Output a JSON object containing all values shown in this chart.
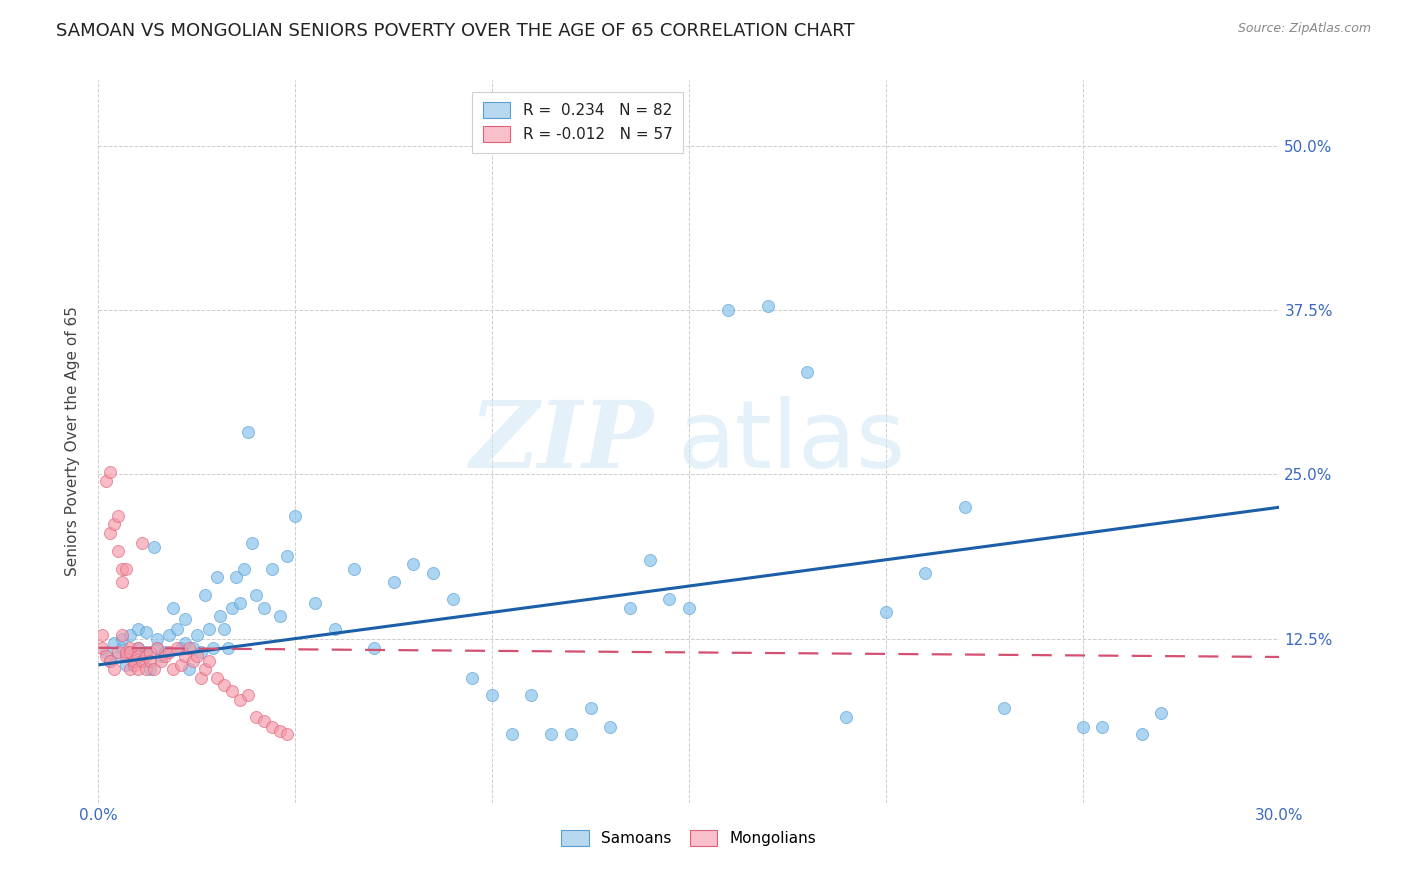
{
  "title": "SAMOAN VS MONGOLIAN SENIORS POVERTY OVER THE AGE OF 65 CORRELATION CHART",
  "source": "Source: ZipAtlas.com",
  "ylabel": "Seniors Poverty Over the Age of 65",
  "samoan_color": "#7fbfea",
  "samoan_edge": "#5a9fd4",
  "mongolian_color": "#f599a8",
  "mongolian_edge": "#e0607a",
  "samoan_line_color": "#1a5fa8",
  "mongolian_line_color": "#d45070",
  "watermark_zip": "ZIP",
  "watermark_atlas": "atlas",
  "background_color": "#ffffff",
  "plot_bg_color": "#ffffff",
  "grid_color": "#c8c8c8",
  "xlim": [
    0.0,
    0.3
  ],
  "ylim": [
    0.0,
    0.55
  ],
  "ytick_vals": [
    0.125,
    0.25,
    0.375,
    0.5
  ],
  "ytick_labels": [
    "12.5%",
    "25.0%",
    "37.5%",
    "50.0%"
  ],
  "xtick_left_label": "0.0%",
  "xtick_right_label": "30.0%",
  "legend_label_samoan": "R =  0.234   N = 82",
  "legend_label_mongolian": "R = -0.012   N = 57",
  "bottom_legend_samoan": "Samoans",
  "bottom_legend_mongolian": "Mongolians",
  "marker_size": 75,
  "marker_alpha": 0.65,
  "title_fontsize": 13,
  "axis_label_fontsize": 11,
  "tick_fontsize": 11,
  "legend_fontsize": 11,
  "samoan_line_start_y": 0.105,
  "samoan_line_end_y": 0.225,
  "mongolian_line_start_y": 0.118,
  "mongolian_line_end_y": 0.111,
  "samoans_x": [
    0.002,
    0.003,
    0.004,
    0.005,
    0.006,
    0.006,
    0.007,
    0.008,
    0.008,
    0.009,
    0.01,
    0.01,
    0.011,
    0.012,
    0.012,
    0.013,
    0.014,
    0.015,
    0.015,
    0.016,
    0.017,
    0.018,
    0.019,
    0.02,
    0.021,
    0.022,
    0.022,
    0.023,
    0.024,
    0.025,
    0.026,
    0.027,
    0.028,
    0.029,
    0.03,
    0.031,
    0.032,
    0.033,
    0.034,
    0.035,
    0.036,
    0.037,
    0.038,
    0.039,
    0.04,
    0.042,
    0.044,
    0.046,
    0.048,
    0.05,
    0.055,
    0.06,
    0.065,
    0.07,
    0.075,
    0.08,
    0.085,
    0.09,
    0.095,
    0.1,
    0.105,
    0.11,
    0.115,
    0.12,
    0.125,
    0.13,
    0.135,
    0.14,
    0.145,
    0.15,
    0.16,
    0.17,
    0.18,
    0.19,
    0.2,
    0.21,
    0.22,
    0.23,
    0.25,
    0.255,
    0.265,
    0.27
  ],
  "samoans_y": [
    0.115,
    0.108,
    0.122,
    0.112,
    0.118,
    0.125,
    0.105,
    0.115,
    0.128,
    0.11,
    0.118,
    0.132,
    0.108,
    0.115,
    0.13,
    0.102,
    0.195,
    0.118,
    0.125,
    0.112,
    0.115,
    0.128,
    0.148,
    0.132,
    0.118,
    0.122,
    0.14,
    0.102,
    0.118,
    0.128,
    0.115,
    0.158,
    0.132,
    0.118,
    0.172,
    0.142,
    0.132,
    0.118,
    0.148,
    0.172,
    0.152,
    0.178,
    0.282,
    0.198,
    0.158,
    0.148,
    0.178,
    0.142,
    0.188,
    0.218,
    0.152,
    0.132,
    0.178,
    0.118,
    0.168,
    0.182,
    0.175,
    0.155,
    0.095,
    0.082,
    0.052,
    0.082,
    0.052,
    0.052,
    0.072,
    0.058,
    0.148,
    0.185,
    0.155,
    0.148,
    0.375,
    0.378,
    0.328,
    0.065,
    0.145,
    0.175,
    0.225,
    0.072,
    0.058,
    0.058,
    0.052,
    0.068
  ],
  "mongolians_x": [
    0.001,
    0.001,
    0.002,
    0.002,
    0.003,
    0.003,
    0.003,
    0.004,
    0.004,
    0.005,
    0.005,
    0.005,
    0.006,
    0.006,
    0.006,
    0.007,
    0.007,
    0.007,
    0.008,
    0.008,
    0.008,
    0.009,
    0.009,
    0.01,
    0.01,
    0.01,
    0.011,
    0.011,
    0.012,
    0.012,
    0.013,
    0.013,
    0.014,
    0.015,
    0.016,
    0.017,
    0.018,
    0.019,
    0.02,
    0.021,
    0.022,
    0.023,
    0.024,
    0.025,
    0.026,
    0.027,
    0.028,
    0.03,
    0.032,
    0.034,
    0.036,
    0.038,
    0.04,
    0.042,
    0.044,
    0.046,
    0.048
  ],
  "mongolians_y": [
    0.118,
    0.128,
    0.245,
    0.112,
    0.252,
    0.108,
    0.205,
    0.212,
    0.102,
    0.192,
    0.218,
    0.115,
    0.128,
    0.168,
    0.178,
    0.112,
    0.178,
    0.115,
    0.102,
    0.118,
    0.115,
    0.105,
    0.108,
    0.102,
    0.118,
    0.112,
    0.198,
    0.108,
    0.112,
    0.102,
    0.115,
    0.108,
    0.102,
    0.118,
    0.108,
    0.112,
    0.115,
    0.102,
    0.118,
    0.105,
    0.112,
    0.118,
    0.108,
    0.112,
    0.095,
    0.102,
    0.108,
    0.095,
    0.09,
    0.085,
    0.078,
    0.082,
    0.065,
    0.062,
    0.058,
    0.055,
    0.052
  ]
}
